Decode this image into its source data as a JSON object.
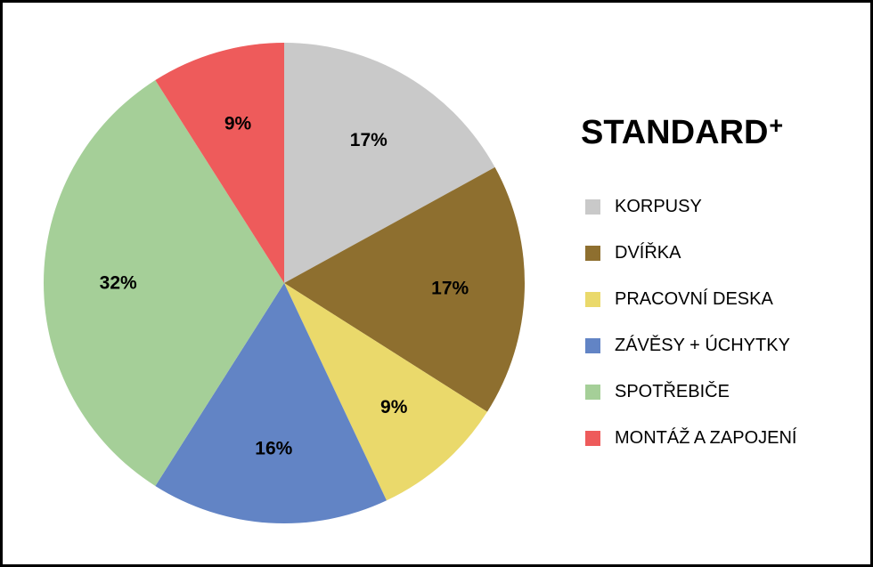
{
  "title": {
    "text": "STANDARD",
    "superscript": "+"
  },
  "chart_data": {
    "type": "pie",
    "title": "STANDARD+",
    "categories": [
      "KORPUSY",
      "DVÍŘKA",
      "PRACOVNÍ DESKA",
      "ZÁVĚSY + ÚCHYTKY",
      "SPOTŘEBIČE",
      "MONTÁŽ A ZAPOJENÍ"
    ],
    "values": [
      17,
      17,
      9,
      16,
      32,
      9
    ],
    "data_labels": [
      "17%",
      "17%",
      "9%",
      "16%",
      "32%",
      "9%"
    ],
    "colors": [
      "#C9C9C9",
      "#8E6F2F",
      "#EAD96B",
      "#6284C5",
      "#A5CF98",
      "#EE5B5B"
    ],
    "start_angle_deg": 0,
    "direction": "clockwise",
    "legend_position": "right",
    "data_label_color": "#000000",
    "background_color": "#FFFFFF",
    "frame_border_color": "#000000"
  }
}
